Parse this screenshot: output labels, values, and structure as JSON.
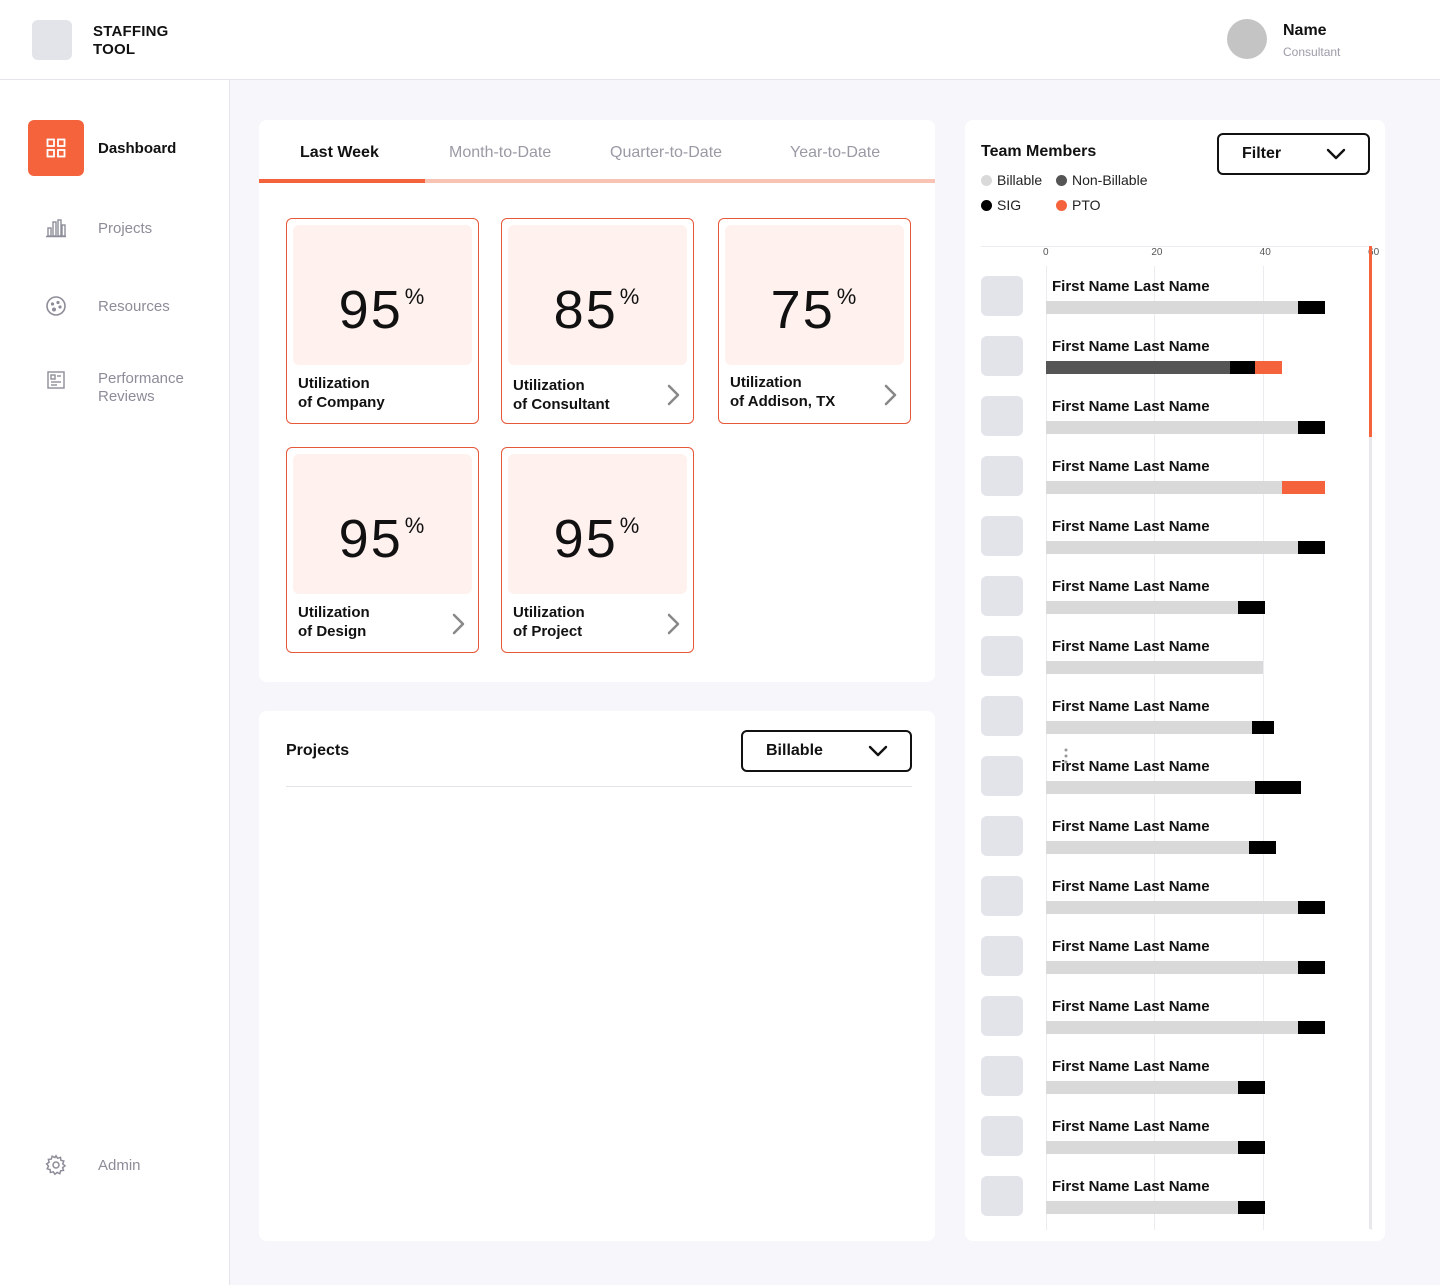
{
  "app": {
    "title": "STAFFING TOOL"
  },
  "user": {
    "name": "Name",
    "role": "Consultant"
  },
  "sidebar": {
    "items": [
      {
        "label": "Dashboard",
        "icon": "dashboard-icon",
        "active": true
      },
      {
        "label": "Projects",
        "icon": "bar-chart-icon",
        "active": false
      },
      {
        "label": "Resources",
        "icon": "palette-icon",
        "active": false
      },
      {
        "label": "Performance Reviews",
        "icon": "review-board-icon",
        "active": false
      }
    ],
    "admin": {
      "label": "Admin",
      "icon": "gear-icon"
    }
  },
  "utilization": {
    "tabs": [
      {
        "label": "Last Week",
        "active": true
      },
      {
        "label": "Month-to-Date",
        "active": false
      },
      {
        "label": "Quarter-to-Date",
        "active": false
      },
      {
        "label": "Year-to-Date",
        "active": false
      }
    ],
    "cards": [
      {
        "value": "95",
        "unit": "%",
        "line1": "Utilization",
        "line2": "of Company",
        "has_arrow": false
      },
      {
        "value": "85",
        "unit": "%",
        "line1": "Utilization",
        "line2": "of Consultant",
        "has_arrow": true
      },
      {
        "value": "75",
        "unit": "%",
        "line1": "Utilization",
        "line2": "of Addison, TX",
        "has_arrow": true
      },
      {
        "value": "95",
        "unit": "%",
        "line1": "Utilization",
        "line2": "of Design",
        "has_arrow": true
      },
      {
        "value": "95",
        "unit": "%",
        "line1": "Utilization",
        "line2": "of Project",
        "has_arrow": true
      }
    ]
  },
  "projects": {
    "title": "Projects",
    "filter_value": "Billable"
  },
  "team": {
    "title": "Team Members",
    "filter_label": "Filter",
    "legend": [
      {
        "label": "Billable",
        "color": "#d9d9d9"
      },
      {
        "label": "Non-Billable",
        "color": "#555555"
      },
      {
        "label": "SIG",
        "color": "#000000"
      },
      {
        "label": "PTO",
        "color": "#f5633d"
      }
    ],
    "axis_ticks": [
      "0",
      "20",
      "40",
      "60"
    ]
  },
  "chart_data": {
    "type": "bar",
    "orientation": "horizontal",
    "stacked": true,
    "xlim": [
      0,
      60
    ],
    "x_ticks": [
      0,
      20,
      40,
      60
    ],
    "categories": [
      "First Name Last Name",
      "First Name Last Name",
      "First Name Last Name",
      "First Name Last Name",
      "First Name Last Name",
      "First Name Last Name",
      "First Name Last Name",
      "First Name Last Name",
      "First Name Last Name",
      "First Name Last Name",
      "First Name Last Name",
      "First Name Last Name",
      "First Name Last Name",
      "First Name Last Name",
      "First Name Last Name",
      "First Name Last Name"
    ],
    "series": [
      {
        "name": "Billable",
        "color": "#d9d9d9",
        "values": [
          46.5,
          0,
          46.5,
          43.5,
          46.5,
          35.5,
          40,
          38,
          38.5,
          37.5,
          46.5,
          46.5,
          46.5,
          35.5,
          35.5,
          35.5
        ]
      },
      {
        "name": "Non-Billable",
        "color": "#555555",
        "values": [
          0,
          34,
          0,
          0,
          0,
          0,
          0,
          0,
          0,
          0,
          0,
          0,
          0,
          0,
          0,
          0
        ]
      },
      {
        "name": "SIG",
        "color": "#000000",
        "values": [
          5,
          4.5,
          5,
          0,
          5,
          5,
          0,
          4,
          8.5,
          5,
          5,
          5,
          5,
          5,
          5,
          5
        ]
      },
      {
        "name": "PTO",
        "color": "#f5633d",
        "values": [
          0,
          5,
          0,
          8,
          0,
          0,
          0,
          0,
          0,
          0,
          0,
          0,
          0,
          0,
          0,
          0
        ]
      }
    ]
  }
}
